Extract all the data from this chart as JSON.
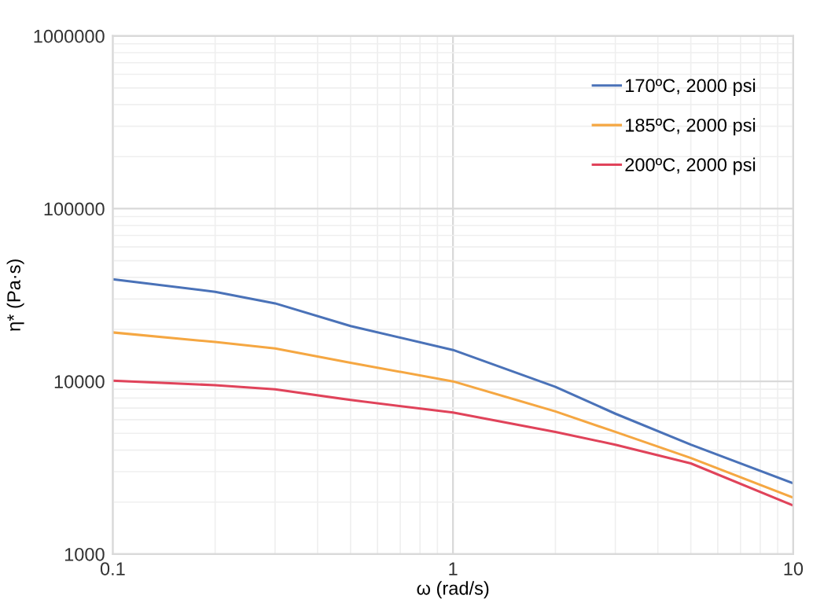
{
  "chart_data": {
    "type": "line",
    "xlabel": "ω (rad/s)",
    "ylabel": "η* (Pa·s)",
    "log": "xy",
    "xlim": [
      0.1,
      10
    ],
    "xticks": [
      0.1,
      1,
      10
    ],
    "ylim": [
      1000,
      1000000
    ],
    "yticks": [
      1000,
      10000,
      100000,
      1000000
    ],
    "x": [
      0.1,
      0.2,
      0.3,
      0.5,
      1,
      2,
      3,
      5,
      10
    ],
    "series": [
      {
        "name": "170ºC, 2000 psi",
        "color": "#4a72b8",
        "values": [
          39000,
          33000,
          28300,
          20900,
          15200,
          9300,
          6500,
          4300,
          2570
        ]
      },
      {
        "name": "185ºC, 2000 psi",
        "color": "#f5a742",
        "values": [
          19200,
          16900,
          15500,
          12800,
          10000,
          6700,
          5100,
          3600,
          2120
        ]
      },
      {
        "name": "200ºC, 2000 psi",
        "color": "#e0435a",
        "values": [
          10100,
          9500,
          9000,
          7800,
          6600,
          5100,
          4300,
          3350,
          1910
        ]
      }
    ],
    "grid": true,
    "legend": "top right",
    "marker": "none",
    "line_style": "solid"
  }
}
